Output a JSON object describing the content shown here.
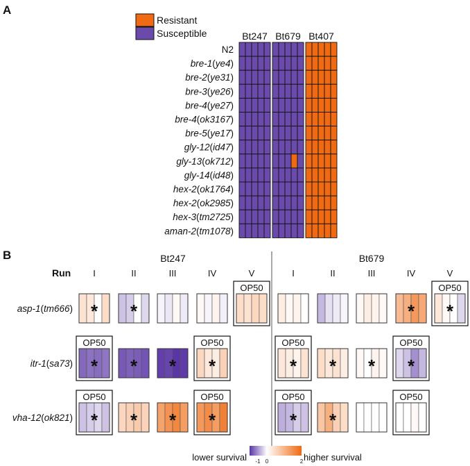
{
  "panel_a": {
    "label": "A",
    "legend": {
      "resistant": {
        "label": "Resistant",
        "color": "#ef6a12"
      },
      "susceptible": {
        "label": "Susceptible",
        "color": "#6a4bab"
      }
    },
    "strain_columns": [
      "Bt247",
      "Bt679",
      "Bt407"
    ],
    "rows": [
      {
        "gene": "N2",
        "allele": ""
      },
      {
        "gene": "bre-1",
        "allele": "ye4"
      },
      {
        "gene": "bre-2",
        "allele": "ye31"
      },
      {
        "gene": "bre-3",
        "allele": "ye26"
      },
      {
        "gene": "bre-4",
        "allele": "ye27"
      },
      {
        "gene": "bre-4",
        "allele": "ok3167"
      },
      {
        "gene": "bre-5",
        "allele": "ye17"
      },
      {
        "gene": "gly-12",
        "allele": "id47"
      },
      {
        "gene": "gly-13",
        "allele": "ok712"
      },
      {
        "gene": "gly-14",
        "allele": "id48"
      },
      {
        "gene": "hex-2",
        "allele": "ok1764"
      },
      {
        "gene": "hex-2",
        "allele": "ok2985"
      },
      {
        "gene": "hex-3",
        "allele": "tm2725"
      },
      {
        "gene": "aman-2",
        "allele": "tm1078"
      }
    ],
    "replicates_per_strain": 5,
    "resistant_exceptions": [
      {
        "row": 8,
        "strain": 1,
        "replicate": 3
      }
    ],
    "default_state": [
      "S",
      "S",
      "R"
    ]
  },
  "panel_b": {
    "label": "B",
    "run_label": "Run",
    "groups": [
      {
        "name": "Bt247",
        "runs": [
          "I",
          "II",
          "III",
          "IV",
          "V"
        ]
      },
      {
        "name": "Bt679",
        "runs": [
          "I",
          "II",
          "III",
          "IV",
          "V"
        ]
      }
    ],
    "op50_label": "OP50",
    "star_label": "*",
    "rows": [
      {
        "gene": "asp-1",
        "allele": "tm666",
        "cells": [
          [
            {
              "run": "I",
              "op50": false,
              "star": true,
              "values": [
                0.25,
                0.2,
                0.0,
                0.3
              ]
            },
            {
              "run": "II",
              "op50": false,
              "star": true,
              "values": [
                -0.3,
                -0.25,
                0.0,
                -0.2
              ]
            },
            {
              "run": "III",
              "op50": false,
              "star": false,
              "values": [
                -0.05,
                -0.12,
                0.05,
                -0.1
              ]
            },
            {
              "run": "IV",
              "op50": false,
              "star": false,
              "values": [
                0.05,
                -0.05,
                0.1,
                -0.08
              ]
            },
            {
              "run": "V",
              "op50": true,
              "star": false,
              "values": [
                0.3,
                0.25,
                0.35,
                0.3
              ]
            }
          ],
          [
            {
              "run": "I",
              "op50": false,
              "star": false,
              "values": [
                0.15,
                0.05,
                0.1,
                0.0
              ]
            },
            {
              "run": "II",
              "op50": false,
              "star": false,
              "values": [
                -0.35,
                -0.15,
                -0.1,
                -0.05
              ]
            },
            {
              "run": "III",
              "op50": false,
              "star": false,
              "values": [
                0.05,
                0.15,
                0.1,
                0.05
              ]
            },
            {
              "run": "IV",
              "op50": false,
              "star": true,
              "values": [
                0.6,
                0.7,
                0.9,
                0.75
              ]
            },
            {
              "run": "V",
              "op50": true,
              "star": true,
              "values": [
                0.2,
                0.05,
                0.0,
                -0.2
              ]
            }
          ]
        ]
      },
      {
        "gene": "itr-1",
        "allele": "sa73",
        "cells": [
          [
            {
              "run": "I",
              "op50": true,
              "star": true,
              "values": [
                -0.75,
                -0.7,
                -0.72,
                -0.68
              ]
            },
            {
              "run": "II",
              "op50": false,
              "star": true,
              "values": [
                -0.82,
                -0.78,
                -0.8,
                -0.85
              ]
            },
            {
              "run": "III",
              "op50": false,
              "star": true,
              "values": [
                -0.95,
                -0.92,
                -1.0,
                -0.97
              ]
            },
            {
              "run": "IV",
              "op50": true,
              "star": true,
              "values": [
                0.35,
                0.2,
                0.15,
                0.4
              ]
            },
            null
          ],
          [
            {
              "run": "I",
              "op50": true,
              "star": true,
              "values": [
                0.2,
                0.15,
                0.1,
                0.25
              ]
            },
            {
              "run": "II",
              "op50": false,
              "star": true,
              "values": [
                0.3,
                0.2,
                0.25,
                0.15
              ]
            },
            {
              "run": "III",
              "op50": false,
              "star": true,
              "values": [
                0.05,
                0.0,
                0.1,
                0.05
              ]
            },
            {
              "run": "IV",
              "op50": true,
              "star": true,
              "values": [
                -0.2,
                -0.3,
                -0.55,
                -0.35
              ]
            },
            null
          ]
        ]
      },
      {
        "gene": "vha-12",
        "allele": "ok821",
        "cells": [
          [
            {
              "run": "I",
              "op50": true,
              "star": true,
              "values": [
                -0.3,
                -0.25,
                -0.2,
                -0.3
              ]
            },
            {
              "run": "II",
              "op50": false,
              "star": true,
              "values": [
                0.35,
                0.4,
                0.45,
                0.38
              ]
            },
            {
              "run": "III",
              "op50": false,
              "star": true,
              "values": [
                0.8,
                0.95,
                1.05,
                0.85
              ]
            },
            {
              "run": "IV",
              "op50": true,
              "star": true,
              "values": [
                0.9,
                1.0,
                0.85,
                1.1
              ]
            },
            null
          ],
          [
            {
              "run": "I",
              "op50": true,
              "star": true,
              "values": [
                -0.4,
                -0.35,
                -0.25,
                -0.3
              ]
            },
            {
              "run": "II",
              "op50": false,
              "star": true,
              "values": [
                0.5,
                0.7,
                0.4,
                0.3
              ]
            },
            {
              "run": "III",
              "op50": false,
              "star": false,
              "values": [
                0.0,
                0.0,
                0.0,
                0.0
              ]
            },
            {
              "run": "IV",
              "op50": true,
              "star": false,
              "values": [
                0.0,
                0.0,
                0.05,
                0.0
              ]
            },
            null
          ]
        ]
      }
    ],
    "colorbar": {
      "low_label": "lower survival",
      "high_label": "higher survival",
      "ticks": [
        "-1",
        "0",
        "2"
      ],
      "range": [
        -1,
        2
      ],
      "low_color": "#5a35a5",
      "mid_color": "#ffffff",
      "high_color": "#ef6a12"
    }
  }
}
